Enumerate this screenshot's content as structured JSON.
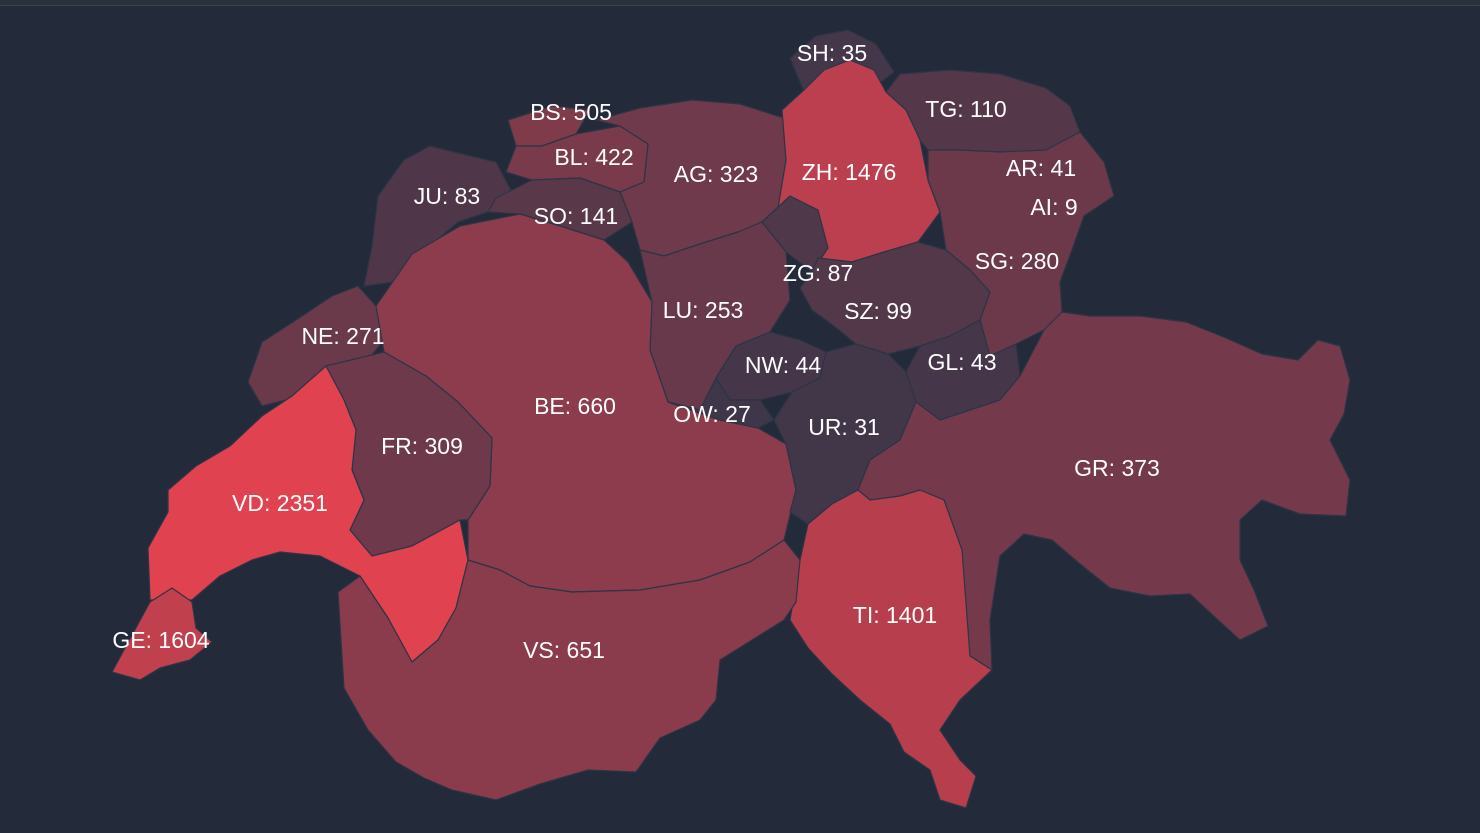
{
  "map": {
    "palette": {
      "low": "#2d3548",
      "high": "#e0424f"
    },
    "cantons": [
      {
        "code": "SH",
        "value": 35
      },
      {
        "code": "BS",
        "value": 505
      },
      {
        "code": "TG",
        "value": 110
      },
      {
        "code": "BL",
        "value": 422
      },
      {
        "code": "AG",
        "value": 323
      },
      {
        "code": "ZH",
        "value": 1476
      },
      {
        "code": "AR",
        "value": 41
      },
      {
        "code": "JU",
        "value": 83
      },
      {
        "code": "AI",
        "value": 9
      },
      {
        "code": "SO",
        "value": 141
      },
      {
        "code": "SG",
        "value": 280
      },
      {
        "code": "ZG",
        "value": 87
      },
      {
        "code": "LU",
        "value": 253
      },
      {
        "code": "SZ",
        "value": 99
      },
      {
        "code": "NE",
        "value": 271
      },
      {
        "code": "NW",
        "value": 44
      },
      {
        "code": "GL",
        "value": 43
      },
      {
        "code": "BE",
        "value": 660
      },
      {
        "code": "OW",
        "value": 27
      },
      {
        "code": "UR",
        "value": 31
      },
      {
        "code": "FR",
        "value": 309
      },
      {
        "code": "GR",
        "value": 373
      },
      {
        "code": "VD",
        "value": 2351
      },
      {
        "code": "TI",
        "value": 1401
      },
      {
        "code": "GE",
        "value": 1604
      },
      {
        "code": "VS",
        "value": 651
      }
    ]
  }
}
